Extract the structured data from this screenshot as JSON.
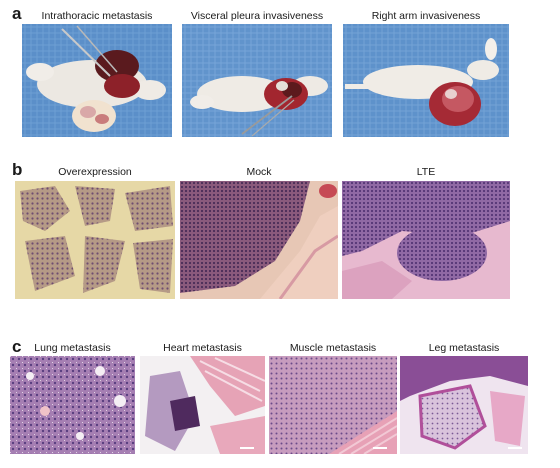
{
  "panels": {
    "a": {
      "letter": "a",
      "captions": [
        "Intrathoracic metastasis",
        "Visceral pleura invasiveness",
        "Right arm invasiveness"
      ]
    },
    "b": {
      "letter": "b",
      "captions": [
        "Overexpression",
        "Mock",
        "LTE"
      ]
    },
    "c": {
      "letter": "c",
      "captions": [
        "Lung metastasis",
        "Heart metastasis",
        "Muscle metastasis",
        "Leg metastasis"
      ]
    }
  },
  "colors": {
    "drape_blue": "#5b8fc9",
    "tumor_red": "#b0202e",
    "he_pink": "#e9b9cf",
    "he_purple": "#6b3c8c",
    "background_yellow": "#e6d8a6"
  }
}
